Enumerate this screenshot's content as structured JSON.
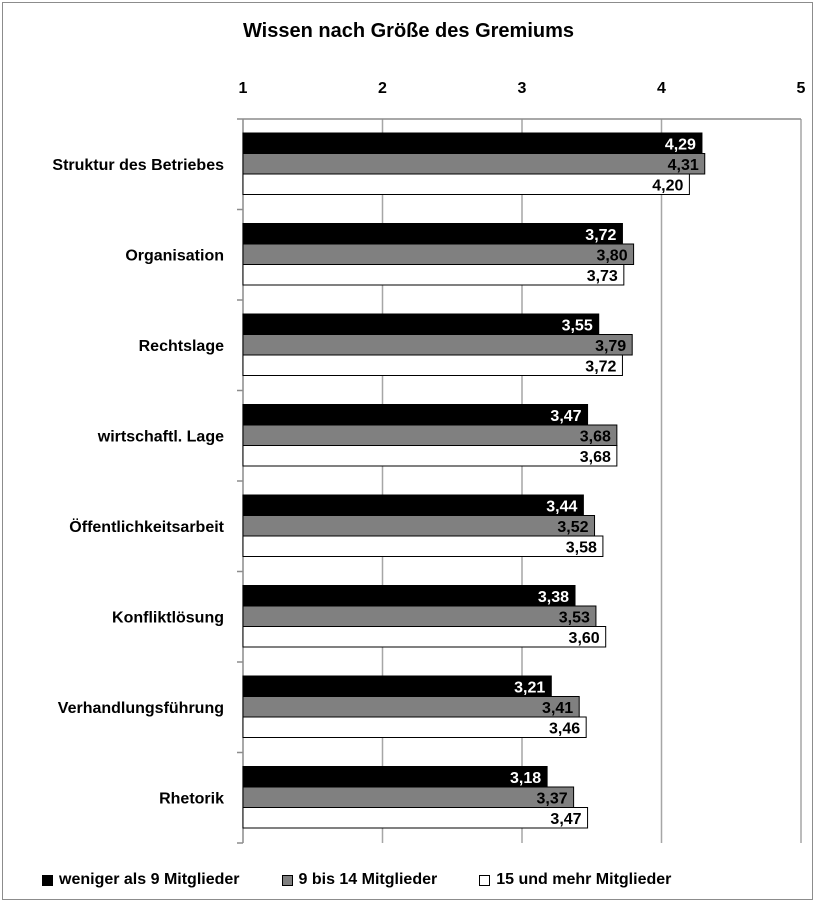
{
  "chart_data": {
    "type": "bar",
    "orientation": "horizontal",
    "title": "Wissen nach Größe des Gremiums",
    "xlim": [
      1,
      5
    ],
    "x_ticks": [
      1,
      2,
      3,
      4,
      5
    ],
    "x_tick_labels": [
      "1",
      "2",
      "3",
      "4",
      "5"
    ],
    "axis_position": "top",
    "grid": "vertical gridlines",
    "legend_position": "bottom",
    "categories": [
      "Struktur des Betriebes",
      "Organisation",
      "Rechtslage",
      "wirtschaftl. Lage",
      "Öffentlichkeitsarbeit",
      "Konfliktlösung",
      "Verhandlungsführung",
      "Rhetorik"
    ],
    "series": [
      {
        "name": "weniger als 9 Mitglieder",
        "color": "#000000",
        "label_color": "#ffffff",
        "values": [
          4.29,
          3.72,
          3.55,
          3.47,
          3.44,
          3.38,
          3.21,
          3.18
        ],
        "labels": [
          "4,29",
          "3,72",
          "3,55",
          "3,47",
          "3,44",
          "3,38",
          "3,21",
          "3,18"
        ]
      },
      {
        "name": "9 bis 14 Mitglieder",
        "color": "#808080",
        "label_color": "#000000",
        "values": [
          4.31,
          3.8,
          3.79,
          3.68,
          3.52,
          3.53,
          3.41,
          3.37
        ],
        "labels": [
          "4,31",
          "3,80",
          "3,79",
          "3,68",
          "3,52",
          "3,53",
          "3,41",
          "3,37"
        ]
      },
      {
        "name": "15 und mehr Mitglieder",
        "color": "#ffffff",
        "label_color": "#000000",
        "values": [
          4.2,
          3.73,
          3.72,
          3.68,
          3.58,
          3.6,
          3.46,
          3.47
        ],
        "labels": [
          "4,20",
          "3,73",
          "3,72",
          "3,68",
          "3,58",
          "3,60",
          "3,46",
          "3,47"
        ]
      }
    ]
  }
}
